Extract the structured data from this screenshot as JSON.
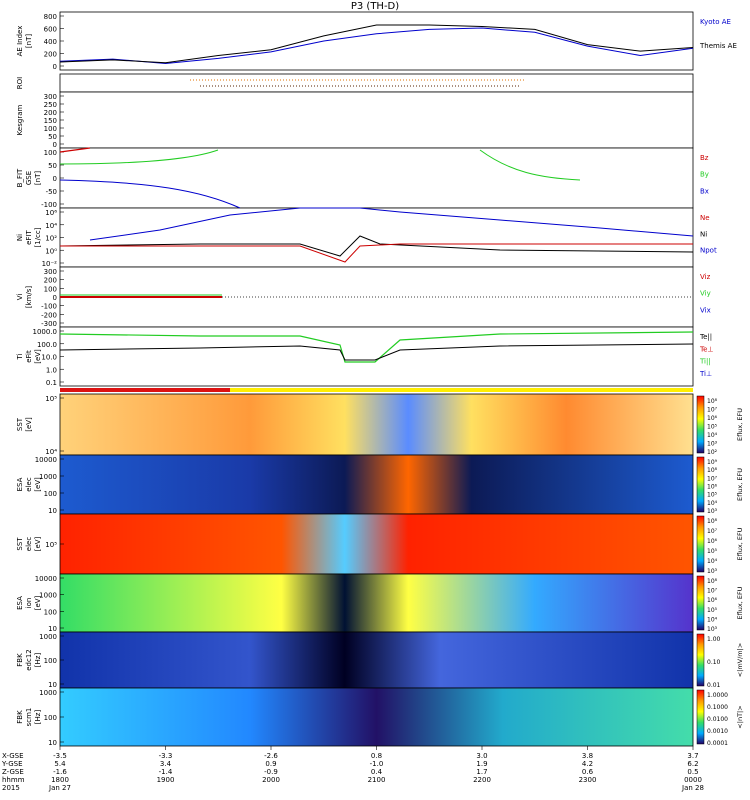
{
  "title": "P3 (TH-D)",
  "colors": {
    "red": "#cc0000",
    "green": "#22cc22",
    "blue": "#0000cc",
    "black": "#000000",
    "orange": "#e07000"
  },
  "panels": [
    {
      "ylabel": [
        "AE Index",
        "[nT]"
      ],
      "ticks": [
        "800",
        "600",
        "400",
        "200",
        "0"
      ],
      "legend": [
        {
          "text": "Kyoto AE",
          "color": "blue"
        },
        {
          "text": "Themis AE",
          "color": "black"
        }
      ]
    },
    {
      "ylabel": [
        "ROI"
      ],
      "ticks": [],
      "legend": []
    },
    {
      "ylabel": [
        "Kesgram"
      ],
      "ticks": [
        "300",
        "250",
        "200",
        "150",
        "100",
        "50",
        "0"
      ],
      "legend": []
    },
    {
      "ylabel": [
        "B_FIT",
        "GSE",
        "[nT]"
      ],
      "ticks": [
        "100",
        "50",
        "0",
        "-50",
        "-100"
      ],
      "legend": [
        {
          "text": "Bz",
          "color": "red"
        },
        {
          "text": "By",
          "color": "green"
        },
        {
          "text": "Bx",
          "color": "blue"
        }
      ]
    },
    {
      "ylabel": [
        "Ni",
        "eFIT",
        "[1/cc]"
      ],
      "ticks": [
        "10⁶",
        "10⁴",
        "10²",
        "10⁰",
        "10⁻²"
      ],
      "legend": [
        {
          "text": "Ne",
          "color": "red"
        },
        {
          "text": "Ni",
          "color": "black"
        },
        {
          "text": "Npot",
          "color": "blue"
        }
      ]
    },
    {
      "ylabel": [
        "Vi",
        "[km/s]"
      ],
      "ticks": [
        "300",
        "200",
        "100",
        "0",
        "-100",
        "-200",
        "-300"
      ],
      "legend": [
        {
          "text": "Viz",
          "color": "red"
        },
        {
          "text": "Viy",
          "color": "green"
        },
        {
          "text": "Vix",
          "color": "blue"
        }
      ]
    },
    {
      "ylabel": [
        "Ti",
        "eFit",
        "[eV]"
      ],
      "ticks": [
        "1000.0",
        "100.0",
        "10.0",
        "1.0",
        "0.1"
      ],
      "legend": [
        {
          "text": "Te||",
          "color": "black"
        },
        {
          "text": "Te⊥",
          "color": "red"
        },
        {
          "text": "Ti||",
          "color": "green"
        },
        {
          "text": "Ti⊥",
          "color": "blue"
        }
      ]
    },
    {
      "ylabel": [
        "SST",
        "[eV]"
      ],
      "ticks": [
        "10⁵",
        "10⁴"
      ],
      "cbar": [
        "10⁸",
        "10⁷",
        "10⁶",
        "10⁵",
        "10⁴",
        "10³",
        "10²"
      ],
      "cbar_label": "Eflux, EFU"
    },
    {
      "ylabel": [
        "ESA",
        "elec",
        "[eV]"
      ],
      "ticks": [
        "10000",
        "1000",
        "100",
        "10"
      ],
      "cbar": [
        "10⁹",
        "10⁸",
        "10⁷",
        "10⁶",
        "10⁵",
        "10⁴",
        "10³"
      ],
      "cbar_label": "Eflux, EFU"
    },
    {
      "ylabel": [
        "SST",
        "elec",
        "[eV]"
      ],
      "ticks": [
        "10⁵"
      ],
      "cbar": [
        "10⁸",
        "10⁷",
        "10⁶",
        "10⁵",
        "10⁴",
        "10³"
      ],
      "cbar_label": "Eflux, EFU"
    },
    {
      "ylabel": [
        "ESA",
        "ion",
        "[eV]"
      ],
      "ticks": [
        "10000",
        "1000",
        "100",
        "10"
      ],
      "cbar": [
        "10⁸",
        "10⁷",
        "10⁶",
        "10⁵",
        "10⁴",
        "10³"
      ],
      "cbar_label": "Eflux, EFU"
    },
    {
      "ylabel": [
        "FBK",
        "edc12",
        "[Hz]"
      ],
      "ticks": [
        "1000",
        "100",
        "10"
      ],
      "cbar": [
        "1.00",
        "0.10",
        "0.01"
      ],
      "cbar_label": "<|mV/m|>"
    },
    {
      "ylabel": [
        "FBK",
        "scm1",
        "[Hz]"
      ],
      "ticks": [
        "1000",
        "100",
        "10"
      ],
      "cbar": [
        "1.0000",
        "0.1000",
        "0.0100",
        "0.0010",
        "0.0001"
      ],
      "cbar_label": "<|nT|>"
    }
  ],
  "xaxis": {
    "row_labels": [
      "X-GSE",
      "Y-GSE",
      "Z-GSE",
      "hhmm",
      "2015"
    ],
    "ticks": [
      {
        "rows": [
          "-3.5",
          "5.4",
          "-1.6",
          "1800",
          "Jan 27"
        ]
      },
      {
        "rows": [
          "-3.3",
          "3.4",
          "-1.4",
          "1900",
          ""
        ]
      },
      {
        "rows": [
          "-2.6",
          "0.9",
          "-0.9",
          "2000",
          ""
        ]
      },
      {
        "rows": [
          "0.8",
          "-1.0",
          "0.4",
          "2100",
          ""
        ]
      },
      {
        "rows": [
          "3.0",
          "1.9",
          "1.7",
          "2200",
          ""
        ]
      },
      {
        "rows": [
          "3.8",
          "4.2",
          "0.6",
          "2300",
          ""
        ]
      },
      {
        "rows": [
          "3.7",
          "6.2",
          "0.5",
          "0000",
          "Jan 28"
        ]
      }
    ]
  },
  "chart_data": {
    "type": "line",
    "title": "P3 (TH-D)",
    "x_label": "hhmm",
    "x_ticks": [
      "1800",
      "1900",
      "2000",
      "2100",
      "2200",
      "2300",
      "0000"
    ],
    "series": [
      {
        "name": "Kyoto AE",
        "unit": "nT",
        "x": [
          "1800",
          "1830",
          "1900",
          "1930",
          "2000",
          "2030",
          "2100",
          "2130",
          "2200",
          "2230",
          "2300",
          "2330",
          "0000"
        ],
        "values": [
          120,
          150,
          90,
          160,
          250,
          400,
          500,
          560,
          580,
          520,
          330,
          200,
          300
        ]
      },
      {
        "name": "Themis AE",
        "unit": "nT",
        "x": [
          "1800",
          "1830",
          "1900",
          "1930",
          "2000",
          "2030",
          "2100",
          "2130",
          "2200",
          "2230",
          "2300",
          "2330",
          "0000"
        ],
        "values": [
          110,
          140,
          100,
          200,
          280,
          470,
          620,
          620,
          600,
          560,
          350,
          260,
          310
        ]
      }
    ]
  }
}
